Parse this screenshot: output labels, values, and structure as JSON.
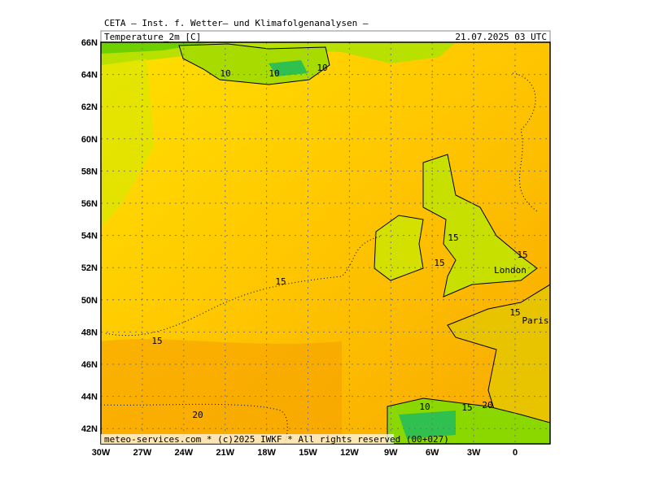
{
  "header": {
    "title": "CETA — Inst. f. Wetter— und Klimafolgenanalysen —",
    "field": "Temperature_2m [C]",
    "valid_time": "21.07.2025 03 UTC"
  },
  "map": {
    "lat_labels": [
      "66N",
      "64N",
      "62N",
      "60N",
      "58N",
      "56N",
      "54N",
      "52N",
      "50N",
      "48N",
      "46N",
      "44N",
      "42N"
    ],
    "lon_labels": [
      "30W",
      "27W",
      "24W",
      "21W",
      "18W",
      "15W",
      "12W",
      "9W",
      "6W",
      "3W",
      "0"
    ],
    "contour_labels": [
      "10",
      "10",
      "10",
      "15",
      "15",
      "15",
      "15",
      "15",
      "15",
      "20",
      "10",
      "15",
      "20"
    ],
    "cities": [
      "London",
      "Paris"
    ]
  },
  "footer": "meteo-services.com * (c)2025 IWKF * All rights reserved (00+027)"
}
